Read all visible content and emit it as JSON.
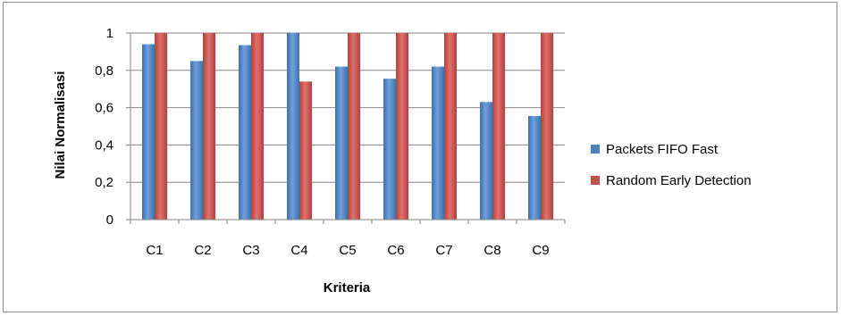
{
  "chart_data": {
    "type": "bar",
    "title": "",
    "xlabel": "Kriteria",
    "ylabel": "Nilai Normalisasi",
    "categories": [
      "C1",
      "C2",
      "C3",
      "C4",
      "C5",
      "C6",
      "C7",
      "C8",
      "C9"
    ],
    "ylim": [
      0,
      1
    ],
    "yticks": [
      0,
      0.2,
      0.4,
      0.6,
      0.8,
      1
    ],
    "ytick_labels": [
      "0",
      "0,2",
      "0,4",
      "0,6",
      "0,8",
      "1"
    ],
    "grid": true,
    "legend_position": "right",
    "series": [
      {
        "name": "Packets FIFO Fast",
        "color": "#4f81bd",
        "values": [
          0.94,
          0.85,
          0.935,
          1.0,
          0.82,
          0.755,
          0.82,
          0.63,
          0.555
        ]
      },
      {
        "name": "Random Early Detection",
        "color": "#c0504d",
        "values": [
          1.0,
          1.0,
          1.0,
          0.74,
          1.0,
          1.0,
          1.0,
          1.0,
          1.0
        ]
      }
    ]
  }
}
